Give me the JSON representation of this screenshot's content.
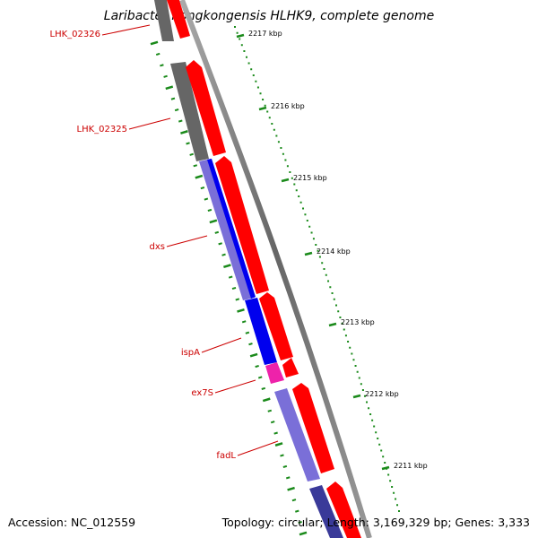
{
  "title": "Laribacter hongkongensis HLHK9, complete genome",
  "footer": {
    "accession": "Accession: NC_012559",
    "summary": "Topology: circular; Length: 3,169,329 bp; Genes: 3,333"
  },
  "colors": {
    "backbone": "#8c8c8c",
    "forward_cds": "#ff0000",
    "reverse_grey": "#666666",
    "reverse_blue": "#0000ee",
    "reverse_lavender": "#7a6fd8",
    "reverse_magenta": "#ee22aa",
    "reverse_navy": "#3a3a99",
    "gene_label": "#cc0000",
    "tick": "#1a8a1a"
  },
  "scale_labels": [
    "2217 kbp",
    "2216 kbp",
    "2215 kbp",
    "2214 kbp",
    "2213 kbp",
    "2212 kbp",
    "2211 kbp"
  ],
  "gene_labels": [
    "LHK_02326",
    "LHK_02325",
    "dxs",
    "ispA",
    "ex7S",
    "fadL"
  ]
}
